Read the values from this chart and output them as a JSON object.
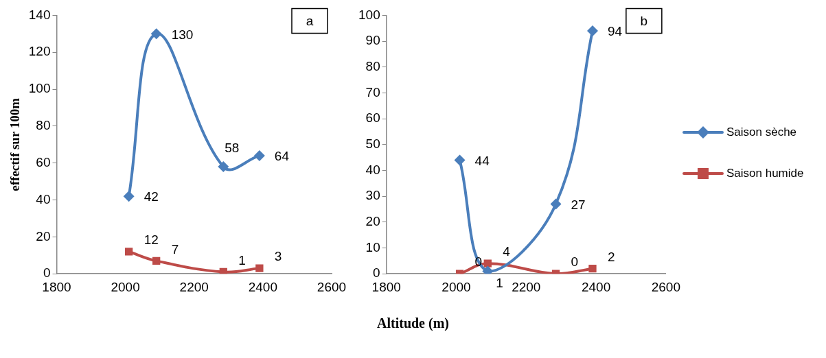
{
  "chart_data": [
    {
      "type": "line",
      "ylabel": "effectif sur 100m",
      "xlabel": "Altitude (m)",
      "x": [
        2010,
        2090,
        2285,
        2390
      ],
      "xlim": [
        1800,
        2600
      ],
      "xticks": [
        1800,
        2000,
        2200,
        2400,
        2600
      ],
      "ylim": [
        0,
        140
      ],
      "yticks": [
        0,
        20,
        40,
        60,
        80,
        100,
        120,
        140
      ],
      "grid": false,
      "legend": false,
      "data_labels": true,
      "annotations": [
        "a"
      ],
      "series": [
        {
          "color": "#4a7ebb",
          "marker": "diamond",
          "values": [
            42,
            130,
            58,
            64
          ]
        },
        {
          "color": "#be4b48",
          "marker": "square",
          "values": [
            12,
            7,
            1,
            3
          ]
        }
      ]
    },
    {
      "type": "line",
      "x": [
        2010,
        2090,
        2285,
        2390
      ],
      "xlim": [
        1800,
        2600
      ],
      "xticks": [
        1800,
        2000,
        2200,
        2400,
        2600
      ],
      "ylim": [
        0,
        100
      ],
      "yticks": [
        0,
        10,
        20,
        30,
        40,
        50,
        60,
        70,
        80,
        90,
        100
      ],
      "grid": false,
      "legend": "right",
      "data_labels": true,
      "annotations": [
        "b"
      ],
      "series": [
        {
          "name": "Saison sèche",
          "color": "#4a7ebb",
          "marker": "diamond",
          "values": [
            44,
            1,
            27,
            94
          ]
        },
        {
          "name": "Saison humide",
          "color": "#be4b48",
          "marker": "square",
          "values": [
            0,
            4,
            0,
            2
          ]
        }
      ]
    }
  ]
}
